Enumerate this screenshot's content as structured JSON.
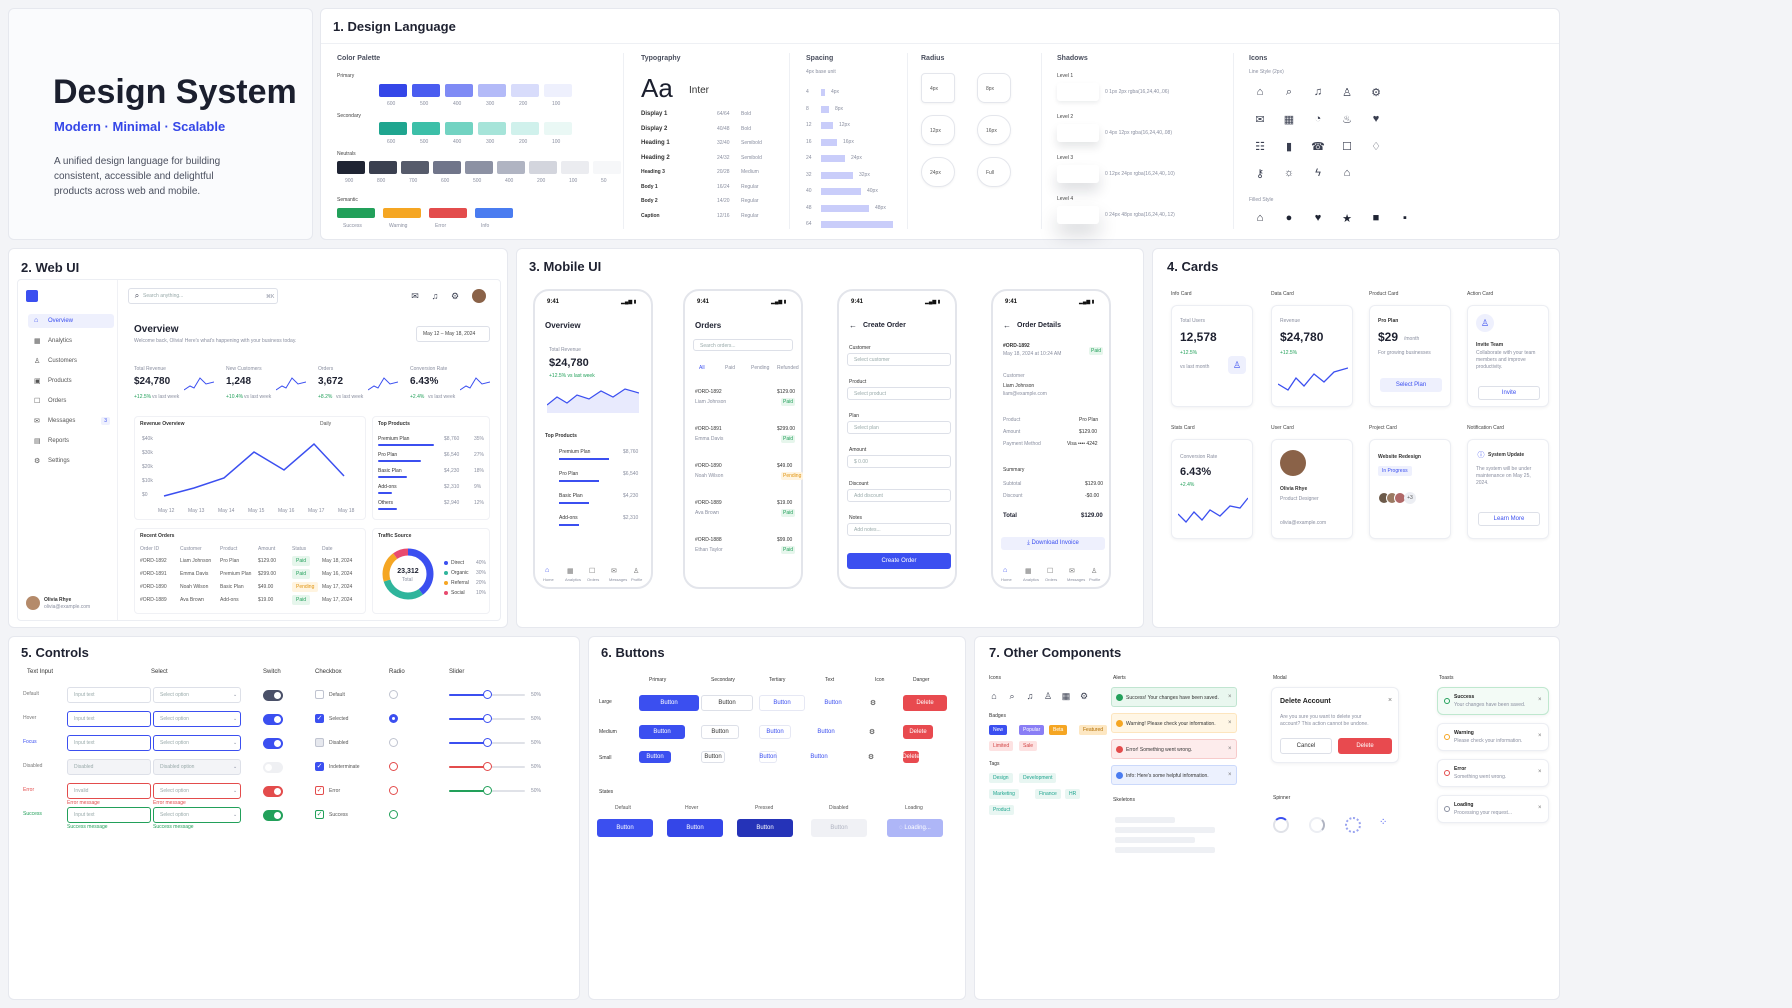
{
  "hero": {
    "title": "Design System",
    "tagline": "Modern · Minimal · Scalable",
    "desc": "A unified design language for building consistent, accessible and delightful products across web and mobile."
  },
  "s1": {
    "title": "1. Design Language",
    "palette": "Color Palette",
    "primary": "Primary",
    "secondary": "Secondary",
    "neutrals": "Neutrals",
    "semantic": "Semantic",
    "primary_shades": [
      "600",
      "500",
      "400",
      "300",
      "200",
      "100"
    ],
    "secondary_shades": [
      "600",
      "500",
      "400",
      "300",
      "200",
      "100"
    ],
    "neutral_shades": [
      "900",
      "800",
      "700",
      "600",
      "500",
      "400",
      "200",
      "100",
      "50"
    ],
    "semantic_labels": [
      "Success",
      "Warning",
      "Error",
      "Info"
    ],
    "colors": {
      "primary": [
        "#3446e8",
        "#4a5cf0",
        "#7f8bf5",
        "#b3baf8",
        "#d8dcfb",
        "#eef0fd"
      ],
      "secondary": [
        "#1fa58f",
        "#3cbfa8",
        "#72d3c2",
        "#a6e4d9",
        "#d0f1ec",
        "#eaf8f5"
      ],
      "neutral": [
        "#1f2433",
        "#3b4050",
        "#565b6b",
        "#70758a",
        "#8c91a3",
        "#b0b4c2",
        "#d3d5dd",
        "#ebecf0",
        "#f6f7f9"
      ],
      "semantic": [
        "#22a05a",
        "#f5a623",
        "#e34c4c",
        "#4a7cf0"
      ]
    },
    "typography": "Typography",
    "type_aa": "Aa",
    "type_font": "Inter",
    "type_rows": [
      [
        "Display 1",
        "64/64",
        "Bold"
      ],
      [
        "Display 2",
        "40/48",
        "Bold"
      ],
      [
        "Heading 1",
        "32/40",
        "Semibold"
      ],
      [
        "Heading 2",
        "24/32",
        "Semibold"
      ],
      [
        "Heading 3",
        "20/28",
        "Medium"
      ],
      [
        "Body 1",
        "16/24",
        "Regular"
      ],
      [
        "Body 2",
        "14/20",
        "Regular"
      ],
      [
        "Caption",
        "12/16",
        "Regular"
      ]
    ],
    "spacing": "Spacing",
    "spacing_sub": "4px base unit",
    "spacing_rows": [
      "4",
      "8",
      "12",
      "16",
      "24",
      "32",
      "40",
      "48",
      "64"
    ],
    "spacing_vals": [
      "4px",
      "8px",
      "12px",
      "16px",
      "24px",
      "32px",
      "40px",
      "48px",
      ""
    ],
    "radius": "Radius",
    "radius_items": [
      "4px",
      "8px",
      "12px",
      "16px",
      "24px",
      "Full"
    ],
    "shadows": "Shadows",
    "shadow_items": [
      [
        "Level 1",
        "0 1px 2px rgba(16,24,40,.06)"
      ],
      [
        "Level 2",
        "0 4px 12px rgba(16,24,40,.08)"
      ],
      [
        "Level 3",
        "0 12px 24px rgba(16,24,40,.10)"
      ],
      [
        "Level 4",
        "0 24px 48px rgba(16,24,40,.12)"
      ]
    ],
    "icons": "Icons",
    "icons_line": "Line Style (2px)",
    "icons_filled": "Filled Style",
    "line_icons": [
      "⌂",
      "⌕",
      "♫",
      "♙",
      "⚙",
      "✉",
      "▦",
      "◔",
      "♨",
      "♥",
      "☷",
      "▮",
      "☎",
      "☐",
      "♢",
      "⚷",
      "☼",
      "ϟ",
      "⌂"
    ],
    "filled_icons": [
      "⌂",
      "●",
      "♥",
      "★",
      "■",
      "▪"
    ]
  },
  "s2": {
    "title": "2. Web UI",
    "search": "Search anything...",
    "kbd": "⌘K",
    "nav": [
      "Overview",
      "Analytics",
      "Customers",
      "Products",
      "Orders",
      "Messages",
      "Reports",
      "Settings"
    ],
    "messages_count": "3",
    "overview": "Overview",
    "welcome": "Welcome back, Olivia! Here's what's happening with your business today.",
    "date_range": "May 12 – May 18, 2024",
    "kpis": [
      [
        "Total Revenue",
        "$24,780",
        "+12.5%"
      ],
      [
        "New Customers",
        "1,248",
        "+10.4%"
      ],
      [
        "Orders",
        "3,672",
        "+8.2%"
      ],
      [
        "Conversion Rate",
        "6.43%",
        "+2.4%"
      ]
    ],
    "vs": "vs last week",
    "rev_overview": "Revenue Overview",
    "daily": "Daily",
    "y_ticks": [
      "$40k",
      "$30k",
      "$20k",
      "$10k",
      "$0"
    ],
    "x_ticks": [
      "May 12",
      "May 13",
      "May 14",
      "May 15",
      "May 16",
      "May 17",
      "May 18"
    ],
    "top_products": "Top Products",
    "products": [
      [
        "Premium Plan",
        "$8,760",
        "35%"
      ],
      [
        "Pro Plan",
        "$6,540",
        "27%"
      ],
      [
        "Basic Plan",
        "$4,230",
        "18%"
      ],
      [
        "Add-ons",
        "$2,310",
        "9%"
      ],
      [
        "Others",
        "$2,940",
        "12%"
      ]
    ],
    "recent_orders": "Recent Orders",
    "order_cols": [
      "Order ID",
      "Customer",
      "Product",
      "Amount",
      "Status",
      "Date"
    ],
    "orders": [
      [
        "#ORD-1892",
        "Liam Johnson",
        "Pro Plan",
        "$129.00",
        "Paid",
        "May 18, 2024"
      ],
      [
        "#ORD-1891",
        "Emma Davis",
        "Premium Plan",
        "$299.00",
        "Paid",
        "May 16, 2024"
      ],
      [
        "#ORD-1890",
        "Noah Wilson",
        "Basic Plan",
        "$49.00",
        "Pending",
        "May 17, 2024"
      ],
      [
        "#ORD-1889",
        "Ava Brown",
        "Add-ons",
        "$19.00",
        "Paid",
        "May 17, 2024"
      ]
    ],
    "traffic": "Traffic Source",
    "traffic_total": "23,312",
    "traffic_total_lbl": "Total",
    "traffic_rows": [
      [
        "Direct",
        "40%"
      ],
      [
        "Organic",
        "30%"
      ],
      [
        "Referral",
        "20%"
      ],
      [
        "Social",
        "10%"
      ]
    ],
    "user_name": "Olivia Rhye",
    "user_email": "olivia@example.com"
  },
  "s3": {
    "title": "3. Mobile UI",
    "time": "9:41",
    "p1": {
      "title": "Overview",
      "rev_lbl": "Total Revenue",
      "rev": "$24,780",
      "rev_delta": "+12.5%  vs last week",
      "top": "Top Products",
      "items": [
        [
          "Premium Plan",
          "$8,760"
        ],
        [
          "Pro Plan",
          "$6,540"
        ],
        [
          "Basic Plan",
          "$4,230"
        ],
        [
          "Add-ons",
          "$2,310"
        ]
      ]
    },
    "p2": {
      "title": "Orders",
      "search": "Search orders...",
      "tabs": [
        "All",
        "Paid",
        "Pending",
        "Refunded"
      ],
      "orders": [
        [
          "#ORD-1892",
          "$129.00",
          "Liam Johnson",
          "Paid"
        ],
        [
          "#ORD-1891",
          "$299.00",
          "Emma Davis",
          "Paid"
        ],
        [
          "#ORD-1890",
          "$49.00",
          "Noah Wilson",
          "Pending"
        ],
        [
          "#ORD-1889",
          "$19.00",
          "Ava Brown",
          "Paid"
        ],
        [
          "#ORD-1888",
          "$99.00",
          "Ethan Taylor",
          "Paid"
        ]
      ]
    },
    "p3": {
      "title": "Create Order",
      "fields": [
        [
          "Customer",
          "Select customer"
        ],
        [
          "Product",
          "Select product"
        ],
        [
          "Plan",
          "Select plan"
        ],
        [
          "Amount",
          "$  0.00"
        ],
        [
          "Discount",
          "Add discount"
        ],
        [
          "Notes",
          "Add notes..."
        ]
      ],
      "btn": "Create Order"
    },
    "p4": {
      "title": "Order Details",
      "id": "#ORD-1892",
      "date": "May 18, 2024 at 10:24 AM",
      "status": "Paid",
      "cust_lbl": "Customer",
      "cust": "Liam Johnson",
      "email": "liam@example.com",
      "rows": [
        [
          "Product",
          "Pro Plan"
        ],
        [
          "Amount",
          "$129.00"
        ],
        [
          "Payment Method",
          "Visa •••• 4242"
        ]
      ],
      "summary": "Summary",
      "sum_rows": [
        [
          "Subtotal",
          "$129.00"
        ],
        [
          "Discount",
          "-$0.00"
        ]
      ],
      "total_lbl": "Total",
      "total": "$129.00",
      "download": "Download Invoice"
    },
    "tabbar": [
      "Home",
      "Analytics",
      "Orders",
      "Messages",
      "Profile"
    ]
  },
  "s4": {
    "title": "4. Cards",
    "info": {
      "cap": "Info Card",
      "lbl": "Total Users",
      "val": "12,578",
      "delta": "+12.5%",
      "sub": "vs last month"
    },
    "data": {
      "cap": "Data Card",
      "lbl": "Revenue",
      "val": "$24,780",
      "delta": "+12.5%"
    },
    "product": {
      "cap": "Product Card",
      "name": "Pro Plan",
      "price": "$29",
      "per": "/month",
      "desc": "For growing businesses",
      "btn": "Select Plan"
    },
    "action": {
      "cap": "Action Card",
      "name": "Invite Team",
      "desc": "Collaborate with your team members and improve productivity.",
      "btn": "Invite"
    },
    "stats": {
      "cap": "Stats Card",
      "lbl": "Conversion Rate",
      "val": "6.43%",
      "delta": "+2.4%"
    },
    "user": {
      "cap": "User Card",
      "name": "Olivia Rhye",
      "role": "Product Designer",
      "email": "olivia@example.com"
    },
    "project": {
      "cap": "Project Card",
      "name": "Website Redesign",
      "status": "In Progress",
      "more": "+3"
    },
    "notif": {
      "cap": "Notification Card",
      "title": "System Update",
      "desc": "The system will be under maintenance on May 25, 2024.",
      "link": "Learn More"
    }
  },
  "s5": {
    "title": "5. Controls",
    "cols": [
      "Text Input",
      "Select",
      "Switch",
      "Checkbox",
      "Radio",
      "Slider"
    ],
    "states": [
      "Default",
      "Hover",
      "Focus",
      "Disabled",
      "Error",
      "Success"
    ],
    "inputs": [
      "Input text",
      "Input text",
      "Input text",
      "Disabled",
      "Invalid",
      "Input text"
    ],
    "selects": [
      "Select option",
      "Select option",
      "Select option",
      "Disabled option",
      "Select option",
      "Select option"
    ],
    "checks": [
      "Default",
      "Selected",
      "Disabled",
      "Indeterminate",
      "Error",
      "Success"
    ],
    "slider_vals": [
      "50%",
      "50%",
      "50%",
      "50%",
      "50%"
    ],
    "err_msg": "Error message",
    "ok_msg": "Success message"
  },
  "s6": {
    "title": "6. Buttons",
    "cols": [
      "Primary",
      "Secondary",
      "Tertiary",
      "Text",
      "Icon",
      "Danger"
    ],
    "sizes": [
      "Large",
      "Medium",
      "Small"
    ],
    "btn": "Button",
    "danger": "Delete",
    "states": "States",
    "state_labels": [
      "Default",
      "Hover",
      "Pressed",
      "Disabled",
      "Loading"
    ],
    "loading": "Loading..."
  },
  "s7": {
    "title": "7. Other Components",
    "icons": "Icons",
    "badges": "Badges",
    "badge_items": [
      "New",
      "Popular",
      "Beta",
      "Featured",
      "Limited",
      "Sale"
    ],
    "tags": "Tags",
    "tag_items": [
      "Design",
      "Development",
      "Marketing",
      "Finance",
      "HR",
      "Product"
    ],
    "alerts": "Alerts",
    "alert_items": [
      "Success! Your changes have been saved.",
      "Warning! Please check your information.",
      "Error! Something went wrong.",
      "Info: Here's some helpful information."
    ],
    "skeletons": "Skeletons",
    "modal": "Modal",
    "modal_title": "Delete Account",
    "modal_desc": "Are you sure you want to delete your account? This action cannot be undone.",
    "modal_cancel": "Cancel",
    "modal_delete": "Delete",
    "spinner": "Spinner",
    "toasts": "Toasts",
    "toast_items": [
      [
        "Success",
        "Your changes have been saved."
      ],
      [
        "Warning",
        "Please check your information."
      ],
      [
        "Error",
        "Something went wrong."
      ],
      [
        "Loading",
        "Processing your request..."
      ]
    ]
  }
}
